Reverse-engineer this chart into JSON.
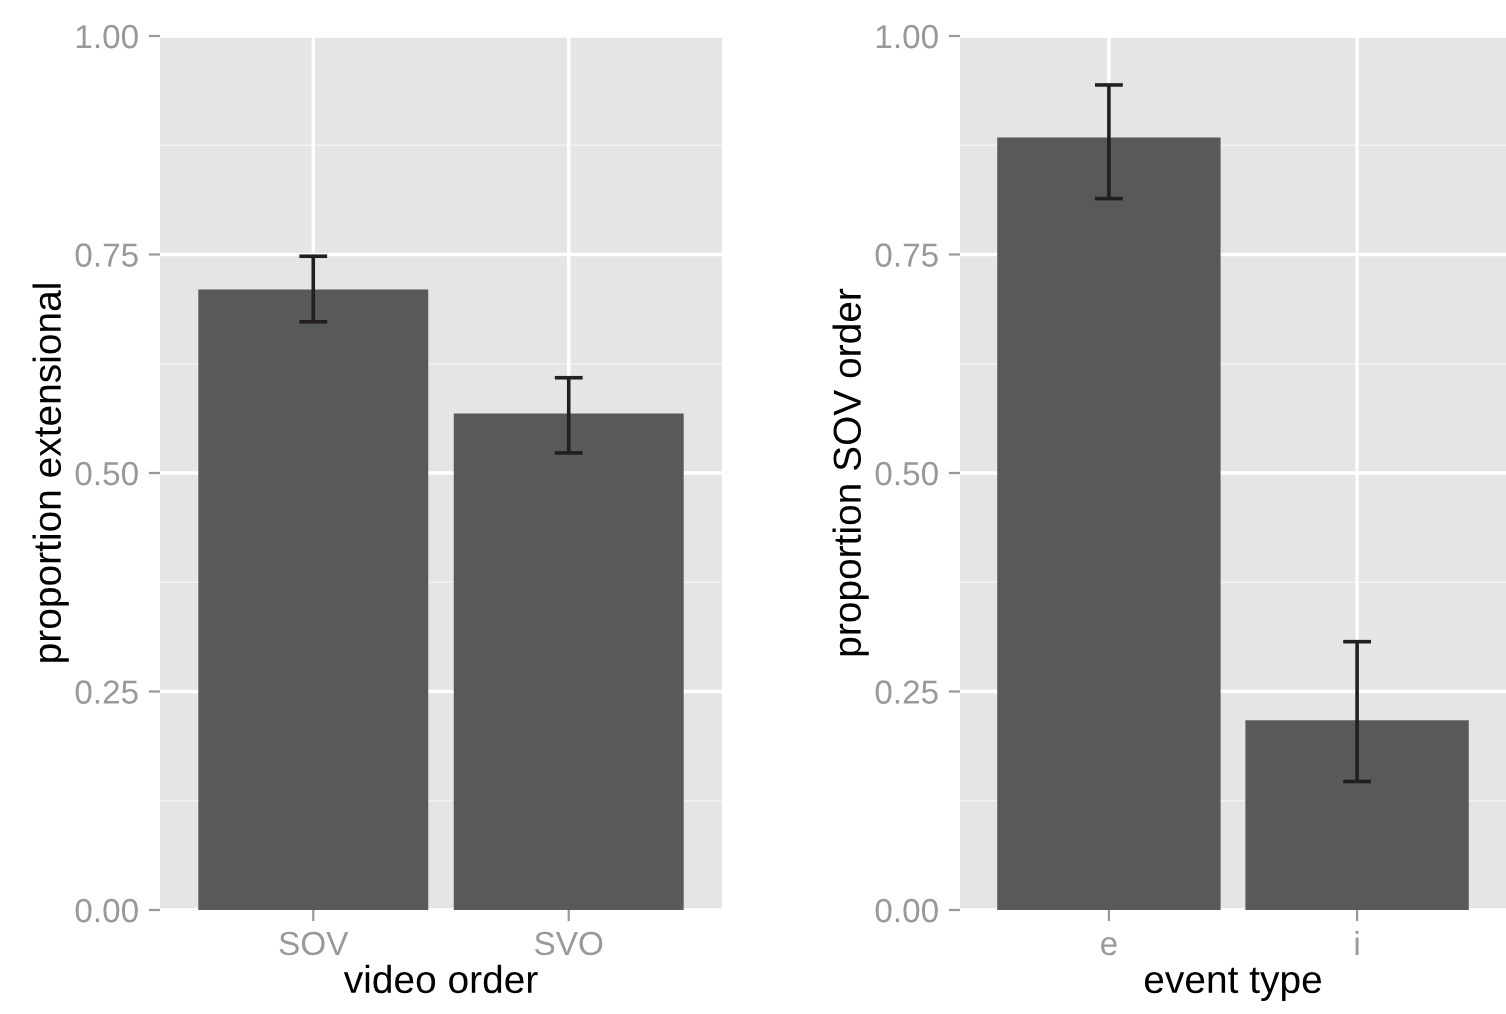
{
  "chart_data": [
    {
      "type": "bar",
      "xlabel": "video order",
      "ylabel": "proportion extensional",
      "categories": [
        "SOV",
        "SVO"
      ],
      "values": [
        0.71,
        0.568
      ],
      "errors": [
        [
          0.673,
          0.748
        ],
        [
          0.523,
          0.609
        ]
      ],
      "color": "#58595b",
      "ylim": [
        0,
        1
      ],
      "yticks": [
        {
          "value": 0,
          "label": "0.00"
        },
        {
          "value": 0.25,
          "label": "0.25"
        },
        {
          "value": 0.5,
          "label": "0.50"
        },
        {
          "value": 0.75,
          "label": "0.75"
        },
        {
          "value": 1,
          "label": "1.00"
        }
      ],
      "grid": true
    },
    {
      "type": "bar",
      "xlabel": "event type",
      "ylabel": "proportion SOV order",
      "categories": [
        "e",
        "i"
      ],
      "values": [
        0.884,
        0.217
      ],
      "errors": [
        [
          0.814,
          0.944
        ],
        [
          0.147,
          0.307
        ]
      ],
      "color": "#58595b",
      "ylim": [
        0,
        1
      ],
      "yticks": [
        {
          "value": 0,
          "label": "0.00"
        },
        {
          "value": 0.25,
          "label": "0.25"
        },
        {
          "value": 0.5,
          "label": "0.50"
        },
        {
          "value": 0.75,
          "label": "0.75"
        },
        {
          "value": 1,
          "label": "1.00"
        }
      ],
      "grid": true
    }
  ]
}
